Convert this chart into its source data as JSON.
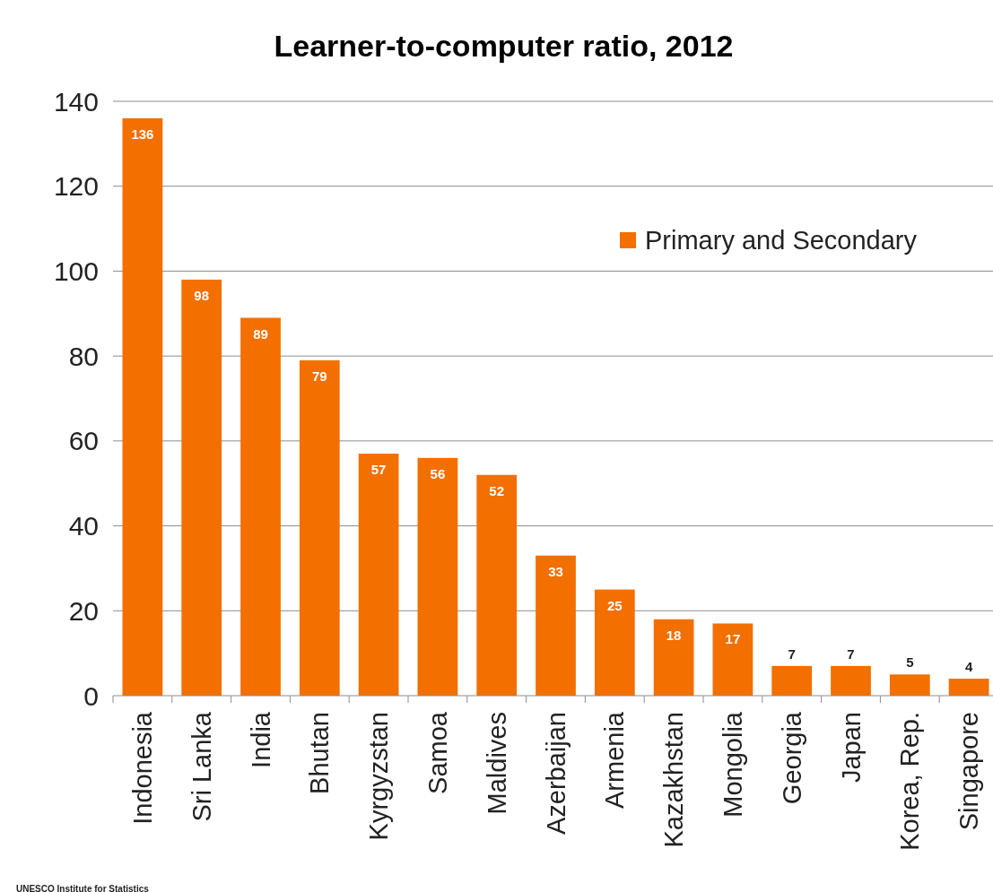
{
  "chart_data": {
    "type": "bar",
    "title": "Learner-to-computer ratio, 2012",
    "categories": [
      "Indonesia",
      "Sri Lanka",
      "India",
      "Bhutan",
      "Kyrgyzstan",
      "Samoa",
      "Maldives",
      "Azerbaijan",
      "Armenia",
      "Kazakhstan",
      "Mongolia",
      "Georgia",
      "Japan",
      "Korea, Rep.",
      "Singapore"
    ],
    "series": [
      {
        "name": "Primary and Secondary",
        "color": "#f26f00",
        "values": [
          136,
          98,
          89,
          79,
          57,
          56,
          52,
          33,
          25,
          18,
          17,
          7,
          7,
          5,
          4
        ]
      }
    ],
    "ylim": [
      0,
      140
    ],
    "yticks": [
      0,
      20,
      40,
      60,
      80,
      100,
      120,
      140
    ],
    "grid": "y",
    "legend": "top right",
    "data_labels": true,
    "annotations": [
      "UNESCO Institute for Statistics"
    ]
  }
}
